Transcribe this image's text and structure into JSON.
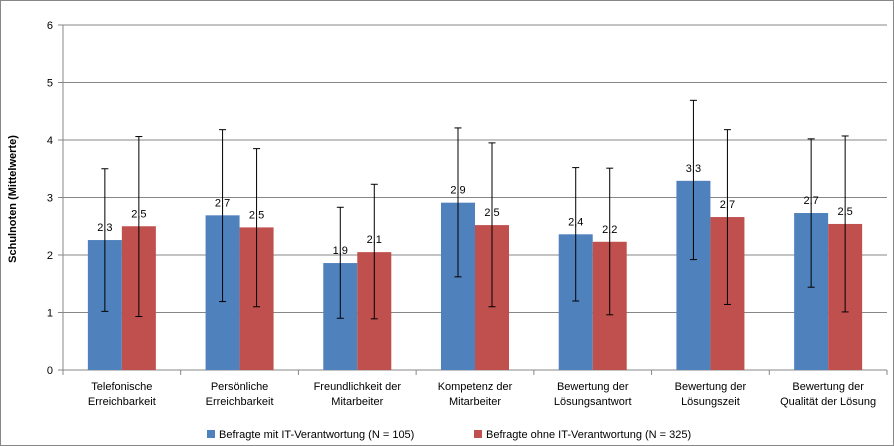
{
  "chart_data": {
    "type": "bar",
    "title": "",
    "xlabel": "",
    "ylabel": "Schulnoten (Mittelwerte)",
    "ylim": [
      0,
      6
    ],
    "yticks": [
      "0",
      "1",
      "2",
      "3",
      "4",
      "5",
      "6"
    ],
    "grid": "horizontal",
    "legend_position": "bottom",
    "categories": [
      [
        "Telefonische",
        "Erreichbarkeit"
      ],
      [
        "Persönliche",
        "Erreichbarkeit"
      ],
      [
        "Freundlichkeit der",
        "Mitarbeiter"
      ],
      [
        "Kompetenz der",
        "Mitarbeiter"
      ],
      [
        "Bewertung der",
        "Lösungsantwort"
      ],
      [
        "Bewertung der",
        "Lösungszeit"
      ],
      [
        "Bewertung der",
        "Qualität der Lösung"
      ]
    ],
    "series": [
      {
        "name": "Befragte mit IT-Verantwortung (N = 105)",
        "color": "#4f81bd",
        "values": [
          2.26,
          2.69,
          1.86,
          2.91,
          2.36,
          3.29,
          2.73
        ],
        "labels": [
          "2,3",
          "2,7",
          "1,9",
          "2,9",
          "2,4",
          "3,3",
          "2,7"
        ],
        "error_low": [
          1.02,
          1.19,
          0.9,
          1.62,
          1.2,
          1.92,
          1.44
        ],
        "error_high": [
          3.5,
          4.18,
          2.83,
          4.21,
          3.52,
          4.69,
          4.02
        ]
      },
      {
        "name": "Befragte ohne IT-Verantwortung (N = 325)",
        "color": "#c0504d",
        "values": [
          2.5,
          2.48,
          2.05,
          2.52,
          2.23,
          2.66,
          2.54
        ],
        "labels": [
          "2,5",
          "2,5",
          "2,1",
          "2,5",
          "2,2",
          "2,7",
          "2,5"
        ],
        "error_low": [
          0.93,
          1.1,
          0.89,
          1.1,
          0.96,
          1.14,
          1.01
        ],
        "error_high": [
          4.06,
          3.85,
          3.23,
          3.95,
          3.51,
          4.18,
          4.07
        ]
      }
    ]
  }
}
